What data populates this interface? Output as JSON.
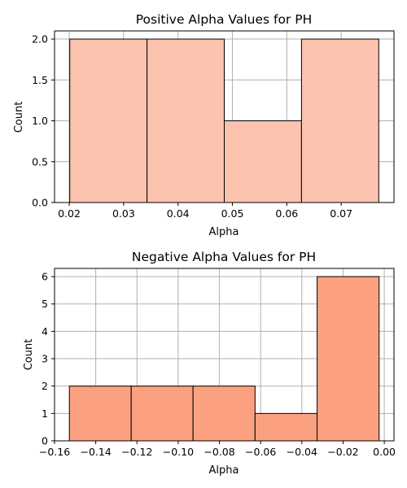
{
  "chart_data": [
    {
      "type": "bar",
      "title": "Positive Alpha Values for PH",
      "xlabel": "Alpha",
      "ylabel": "Count",
      "bin_edges": [
        0.0201,
        0.0343,
        0.0485,
        0.0627,
        0.0769
      ],
      "values": [
        2,
        2,
        1,
        2
      ],
      "xlim": [
        0.0173,
        0.0797
      ],
      "ylim": [
        0,
        2.1
      ],
      "xticks": [
        0.02,
        0.03,
        0.04,
        0.05,
        0.06,
        0.07
      ],
      "xtick_labels": [
        "0.02",
        "0.03",
        "0.04",
        "0.05",
        "0.06",
        "0.07"
      ],
      "yticks": [
        0,
        0.5,
        1,
        1.5,
        2
      ],
      "ytick_labels": [
        "0.0",
        "0.5",
        "1.0",
        "1.5",
        "2.0"
      ],
      "grid": true,
      "color": "#fcc3af"
    },
    {
      "type": "bar",
      "title": "Negative Alpha Values for PH",
      "xlabel": "Alpha",
      "ylabel": "Count",
      "bin_edges": [
        -0.1528,
        -0.1228,
        -0.0928,
        -0.0627,
        -0.0326,
        -0.0025
      ],
      "values": [
        2,
        2,
        2,
        1,
        6
      ],
      "xlim": [
        -0.16,
        0.0047
      ],
      "ylim": [
        0,
        6.3
      ],
      "xticks": [
        -0.16,
        -0.14,
        -0.12,
        -0.1,
        -0.08,
        -0.06,
        -0.04,
        -0.02,
        0.0
      ],
      "xtick_labels": [
        "−0.16",
        "−0.14",
        "−0.12",
        "−0.10",
        "−0.08",
        "−0.06",
        "−0.04",
        "−0.02",
        "0.00"
      ],
      "yticks": [
        0,
        1,
        2,
        3,
        4,
        5,
        6
      ],
      "ytick_labels": [
        "0",
        "1",
        "2",
        "3",
        "4",
        "5",
        "6"
      ],
      "grid": true,
      "color": "#fca17f"
    }
  ]
}
